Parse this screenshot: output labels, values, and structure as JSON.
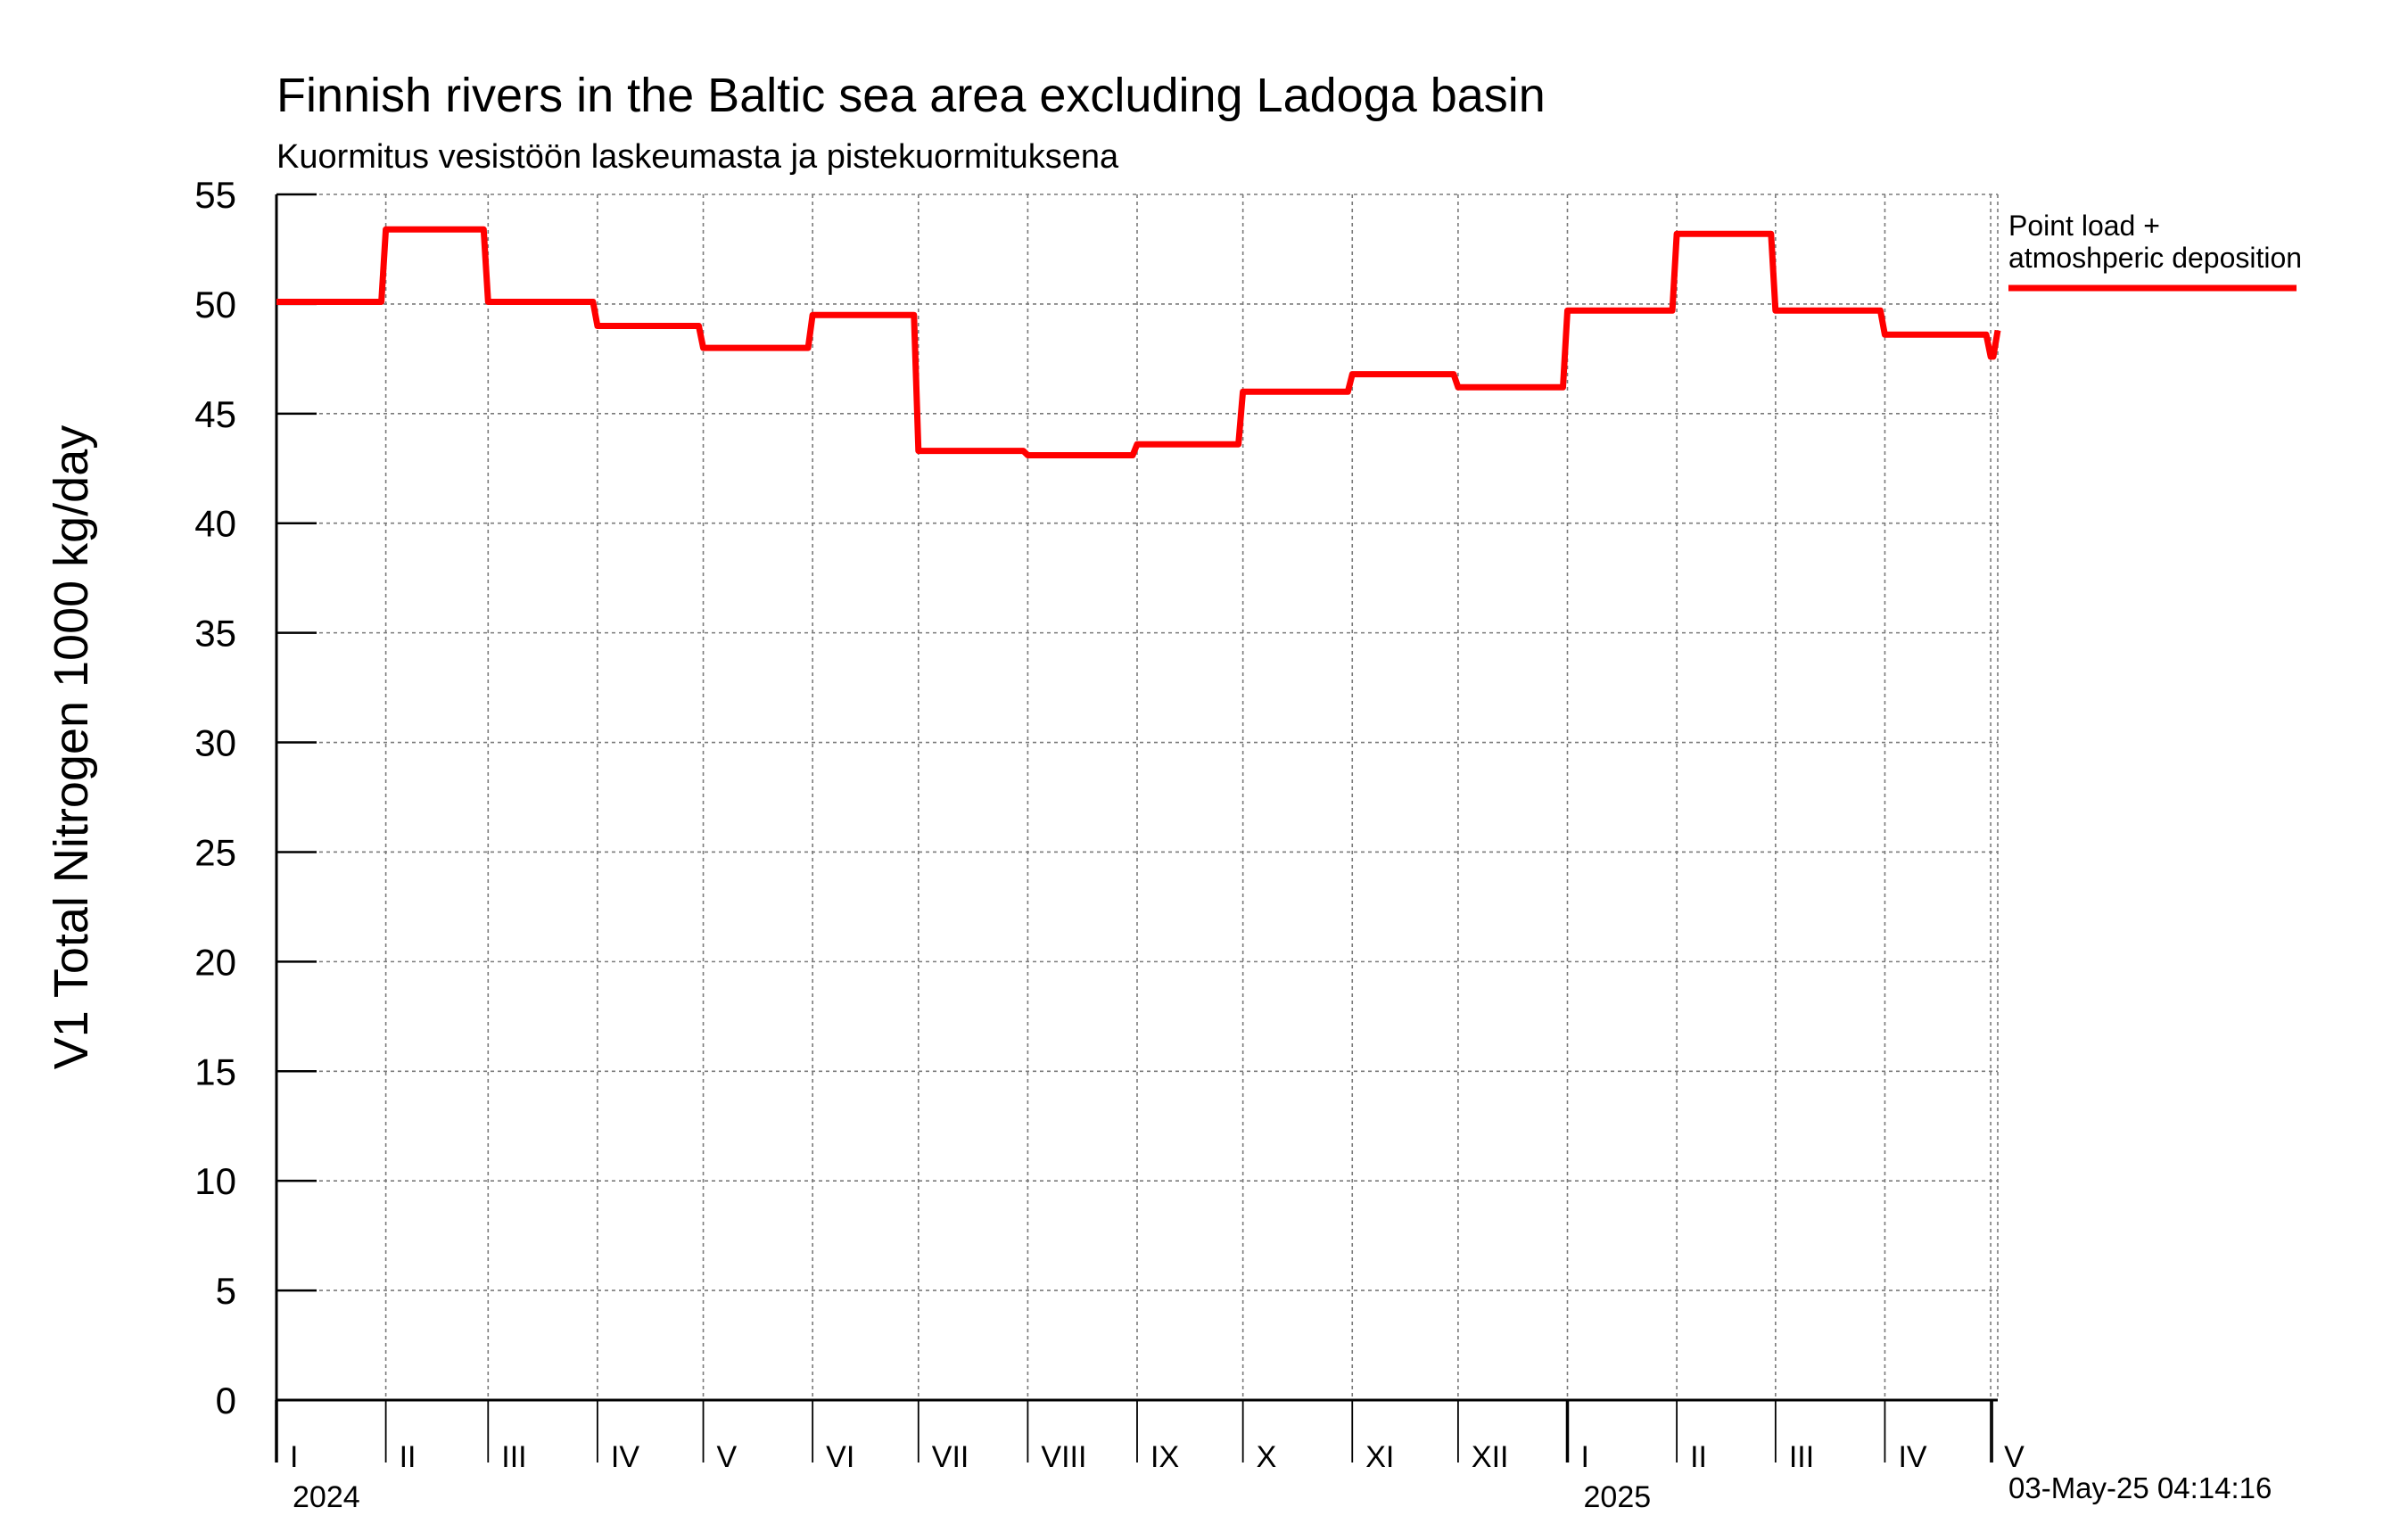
{
  "chart_data": {
    "type": "line",
    "title": "Finnish rivers in the Baltic sea area excluding Ladoga basin",
    "subtitle": "Kuormitus vesistöön laskeumasta ja pistekuormituksena",
    "ylabel": "V1 Total Nitrogen 1000 kg/day",
    "xlabel": "",
    "ylim": [
      0,
      55
    ],
    "yticks": [
      0,
      5,
      10,
      15,
      20,
      25,
      30,
      35,
      40,
      45,
      50,
      55
    ],
    "xlim": [
      "2024-01-01",
      "2025-05-03"
    ],
    "x_axis": "date",
    "grid": true,
    "legend_position": "right",
    "month_labels": [
      "I",
      "II",
      "III",
      "IV",
      "V",
      "VI",
      "VII",
      "VIII",
      "IX",
      "X",
      "XI",
      "XII",
      "I",
      "II",
      "III",
      "IV",
      "V"
    ],
    "month_starts": [
      "2024-01-01",
      "2024-02-01",
      "2024-03-01",
      "2024-04-01",
      "2024-05-01",
      "2024-06-01",
      "2024-07-01",
      "2024-08-01",
      "2024-09-01",
      "2024-10-01",
      "2024-11-01",
      "2024-12-01",
      "2025-01-01",
      "2025-02-01",
      "2025-03-01",
      "2025-04-01",
      "2025-05-01"
    ],
    "year_labels": [
      {
        "label": "2024",
        "date": "2024-01-01"
      },
      {
        "label": "2025",
        "date": "2025-01-01"
      }
    ],
    "series": [
      {
        "name": "Point load + atmoshperic deposition",
        "color": "#ff0000",
        "step": true,
        "x": [
          "2024-01-01",
          "2024-02-01",
          "2024-03-01",
          "2024-04-01",
          "2024-05-01",
          "2024-06-01",
          "2024-07-01",
          "2024-08-01",
          "2024-09-01",
          "2024-10-01",
          "2024-11-01",
          "2024-12-01",
          "2025-01-01",
          "2025-02-01",
          "2025-03-01",
          "2025-04-01",
          "2025-05-01",
          "2025-05-03"
        ],
        "values": [
          50.1,
          53.4,
          50.1,
          49.0,
          48.0,
          49.5,
          43.3,
          43.1,
          43.6,
          46.0,
          46.8,
          46.2,
          49.7,
          53.2,
          49.7,
          48.6,
          47.6,
          48.8
        ]
      }
    ],
    "legend": [
      {
        "line1": "Point load +",
        "line2": "atmoshperic deposition",
        "color": "#ff0000"
      }
    ],
    "timestamp": "03-May-25 04:14:16"
  }
}
